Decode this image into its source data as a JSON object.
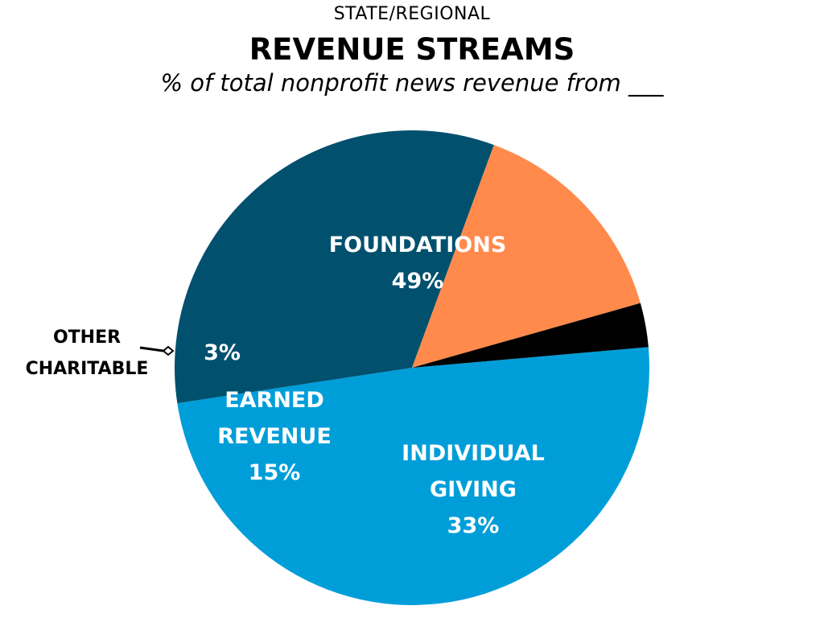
{
  "header": {
    "eyebrow": "STATE/REGIONAL",
    "title": "REVENUE STREAMS",
    "subtitle": "% of total nonprofit news revenue from ___"
  },
  "chart_data": {
    "type": "pie",
    "title": "REVENUE STREAMS",
    "subtitle": "% of total nonprofit news revenue from ___",
    "slices": [
      {
        "label": [
          "FOUNDATIONS"
        ],
        "value": 49,
        "display": "49%",
        "color": "#009ED9",
        "text_color": "#FFFFFF",
        "label_position": "inside"
      },
      {
        "label": [
          "INDIVIDUAL",
          "GIVING"
        ],
        "value": 33,
        "display": "33%",
        "color": "#00506E",
        "text_color": "#FFFFFF",
        "label_position": "inside"
      },
      {
        "label": [
          "EARNED",
          "REVENUE"
        ],
        "value": 15,
        "display": "15%",
        "color": "#FF8A4C",
        "text_color": "#FFFFFF",
        "label_position": "inside"
      },
      {
        "label": [
          "OTHER",
          "CHARITABLE"
        ],
        "value": 3,
        "display": "3%",
        "color": "#000000",
        "text_color": "#FFFFFF",
        "label_position": "outside-left"
      }
    ]
  }
}
